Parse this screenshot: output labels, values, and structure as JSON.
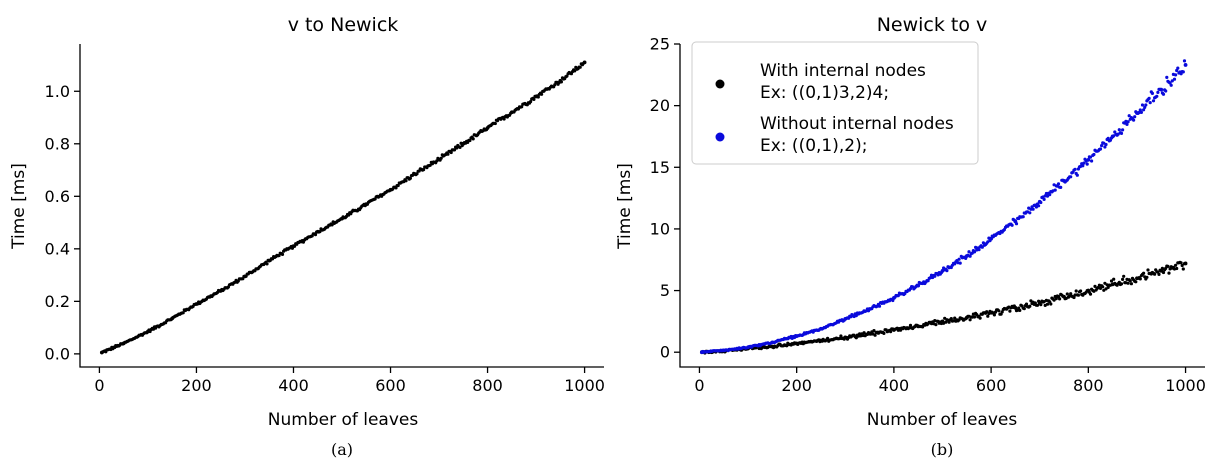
{
  "chart_data": [
    {
      "type": "scatter",
      "title": "v to Newick",
      "xlabel": "Number of leaves",
      "ylabel": "Time [ms]",
      "xlim": [
        -40,
        1040
      ],
      "ylim": [
        -0.05,
        1.18
      ],
      "xticks": [
        0,
        200,
        400,
        600,
        800,
        1000
      ],
      "yticks": [
        0.0,
        0.2,
        0.4,
        0.6,
        0.8,
        1.0
      ],
      "ytick_labels": [
        "0.0",
        "0.2",
        "0.4",
        "0.6",
        "0.8",
        "1.0"
      ],
      "xtick_labels": [
        "0",
        "200",
        "400",
        "600",
        "800",
        "1000"
      ],
      "caption": "(a)",
      "grid": false,
      "series": [
        {
          "color": "#000000",
          "x": [
            5,
            50,
            100,
            150,
            200,
            250,
            300,
            350,
            400,
            450,
            500,
            550,
            600,
            650,
            700,
            750,
            800,
            850,
            900,
            950,
            1000
          ],
          "values": [
            0.005,
            0.04,
            0.085,
            0.135,
            0.19,
            0.24,
            0.295,
            0.355,
            0.41,
            0.465,
            0.515,
            0.57,
            0.625,
            0.685,
            0.74,
            0.8,
            0.86,
            0.92,
            0.98,
            1.04,
            1.11
          ]
        }
      ]
    },
    {
      "type": "scatter",
      "title": "Newick to v",
      "xlabel": "Number of leaves",
      "ylabel": "Time [ms]",
      "xlim": [
        -40,
        1040
      ],
      "ylim": [
        -1.2,
        25
      ],
      "xticks": [
        0,
        200,
        400,
        600,
        800,
        1000
      ],
      "yticks": [
        0,
        5,
        10,
        15,
        20,
        25
      ],
      "ytick_labels": [
        "0",
        "5",
        "10",
        "15",
        "20",
        "25"
      ],
      "xtick_labels": [
        "0",
        "200",
        "400",
        "600",
        "800",
        "1000"
      ],
      "caption": "(b)",
      "grid": false,
      "legend_position": "top-left",
      "series": [
        {
          "name": "With internal nodes",
          "name_line2": "Ex: ((0,1)3,2)4;",
          "color": "#000000",
          "x": [
            5,
            50,
            100,
            150,
            200,
            250,
            300,
            350,
            400,
            450,
            500,
            550,
            600,
            650,
            700,
            750,
            800,
            850,
            900,
            950,
            1000
          ],
          "values": [
            0.0,
            0.1,
            0.3,
            0.45,
            0.7,
            0.95,
            1.2,
            1.5,
            1.8,
            2.1,
            2.5,
            2.8,
            3.2,
            3.6,
            4.0,
            4.5,
            5.0,
            5.5,
            6.0,
            6.6,
            7.2
          ]
        },
        {
          "name": "Without internal nodes",
          "name_line2": "Ex: ((0,1),2);",
          "color": "#0a0adc",
          "x": [
            5,
            50,
            100,
            150,
            200,
            250,
            300,
            350,
            400,
            450,
            500,
            550,
            600,
            650,
            700,
            750,
            800,
            850,
            900,
            950,
            1000
          ],
          "values": [
            0.0,
            0.15,
            0.4,
            0.8,
            1.3,
            1.9,
            2.7,
            3.5,
            4.4,
            5.4,
            6.6,
            7.8,
            9.2,
            10.6,
            12.2,
            13.9,
            15.6,
            17.5,
            19.4,
            21.3,
            23.3
          ]
        }
      ]
    }
  ]
}
